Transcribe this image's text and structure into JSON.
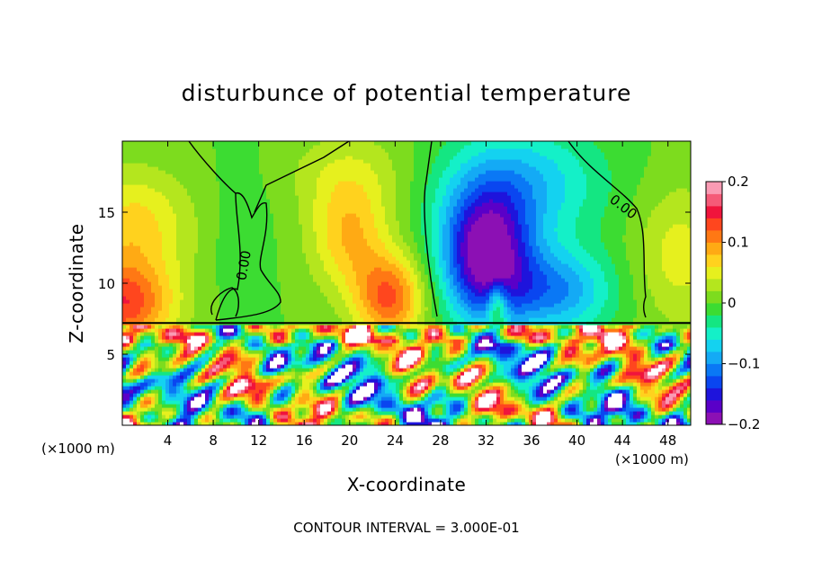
{
  "chart_data": {
    "type": "heatmap",
    "title": "disturbunce of potential temperature",
    "xlabel": "X-coordinate",
    "ylabel": "Z-coordinate",
    "x_unit_left": "(×1000 m)",
    "x_unit_right": "(×1000 m)",
    "xlim": [
      0,
      50
    ],
    "ylim": [
      0,
      20
    ],
    "xticks": [
      4,
      8,
      12,
      16,
      20,
      24,
      28,
      32,
      36,
      40,
      44,
      48
    ],
    "xtick_labels": [
      "4",
      "8",
      "12",
      "16",
      "20",
      "24",
      "28",
      "32",
      "36",
      "40",
      "44",
      "48"
    ],
    "yticks": [
      5,
      10,
      15
    ],
    "ytick_labels": [
      "5",
      "10",
      "15"
    ],
    "colorbar": {
      "min": -0.2,
      "max": 0.2,
      "ticks": [
        0.2,
        0.1,
        0,
        -0.1,
        -0.2
      ],
      "tick_labels": [
        "0.2",
        "0.1",
        "0",
        "−0.1",
        "−0.2"
      ],
      "colors": [
        "#8c10b4",
        "#5a00c8",
        "#1e14dc",
        "#0a46f0",
        "#0a78f5",
        "#14aaf5",
        "#14d2f0",
        "#14f0c8",
        "#14e682",
        "#3cdc32",
        "#7ddc1e",
        "#b4e61e",
        "#e6f01e",
        "#ffd21e",
        "#ffaa14",
        "#ff7814",
        "#ff461e",
        "#f0143c",
        "#f55a78",
        "#fa9bb4"
      ]
    },
    "contour_labels": [
      "0.00",
      "0.00"
    ],
    "contour_interval_text": "CONTOUR INTERVAL = 3.000E-01",
    "interface_height": 7.2
  }
}
